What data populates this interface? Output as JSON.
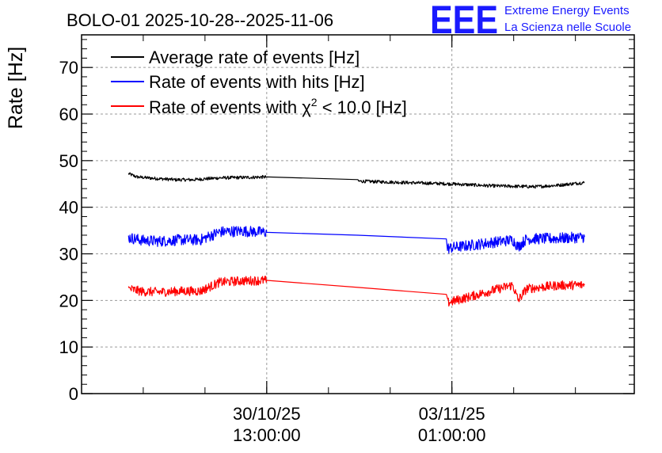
{
  "chart_data": {
    "type": "line",
    "title": "BOLO-01 2025-10-28--2025-11-06",
    "ylabel": "Rate [Hz]",
    "xlabel": "",
    "ylim": [
      0,
      77
    ],
    "xlim": [
      0,
      100
    ],
    "y_ticks": [
      0,
      10,
      20,
      30,
      40,
      50,
      60,
      70
    ],
    "x_ticks": [
      {
        "x": 33.5,
        "line1": "30/10/25",
        "line2": "13:00:00"
      },
      {
        "x": 67.0,
        "line1": "03/11/25",
        "line2": "01:00:00"
      }
    ],
    "grid": true,
    "legend_position": "top-left",
    "series": [
      {
        "name": "Average rate of events [Hz]",
        "color": "#000000",
        "noise": 0.35,
        "points": [
          [
            8.5,
            47.2
          ],
          [
            10,
            46.5
          ],
          [
            13,
            46.2
          ],
          [
            17,
            45.9
          ],
          [
            20,
            45.9
          ],
          [
            25,
            46.3
          ],
          [
            30,
            46.4
          ],
          [
            33.5,
            46.5
          ],
          [
            50,
            45.6
          ],
          [
            67,
            45.0
          ],
          [
            74,
            44.6
          ],
          [
            78,
            44.5
          ],
          [
            82,
            44.4
          ],
          [
            86,
            44.7
          ],
          [
            91,
            45.3
          ]
        ]
      },
      {
        "name": "Rate of events with hits [Hz]",
        "color": "#0000ff",
        "noise": 1.2,
        "points": [
          [
            8.5,
            33.5
          ],
          [
            11,
            32.9
          ],
          [
            14,
            32.7
          ],
          [
            18,
            33.0
          ],
          [
            21.5,
            33.0
          ],
          [
            25,
            34.7
          ],
          [
            29,
            34.9
          ],
          [
            33.5,
            34.6
          ],
          [
            50,
            34.0
          ],
          [
            66,
            33.2
          ],
          [
            66.2,
            31.2
          ],
          [
            78,
            33.0
          ],
          [
            79,
            31.5
          ],
          [
            80.5,
            33.2
          ],
          [
            86,
            33.3
          ],
          [
            91,
            33.6
          ]
        ]
      },
      {
        "name": "Rate of events with χ2 < 10.0 [Hz]",
        "color": "#ff0000",
        "noise": 1.0,
        "points": [
          [
            8.5,
            22.5
          ],
          [
            11,
            21.9
          ],
          [
            14,
            21.8
          ],
          [
            18,
            22.0
          ],
          [
            21.5,
            22.0
          ],
          [
            25,
            23.9
          ],
          [
            29,
            24.2
          ],
          [
            33.5,
            24.3
          ],
          [
            50,
            22.8
          ],
          [
            66,
            21.3
          ],
          [
            66.2,
            19.5
          ],
          [
            78,
            23.3
          ],
          [
            79,
            20.0
          ],
          [
            80.5,
            22.5
          ],
          [
            86,
            23.2
          ],
          [
            91,
            23.3
          ]
        ]
      }
    ]
  },
  "legend": {
    "avg": "Average rate of events [Hz]",
    "hits_label": "Rate of events with hits [Hz]",
    "chi_prefix": "Rate of events with ",
    "chi_symbol": "χ",
    "chi_exp": "2",
    "chi_suffix": " < 10.0 [Hz]"
  },
  "logo": {
    "mark": "EEE",
    "line1": "Extreme Energy Events",
    "line2": "La Scienza nelle Scuole"
  }
}
